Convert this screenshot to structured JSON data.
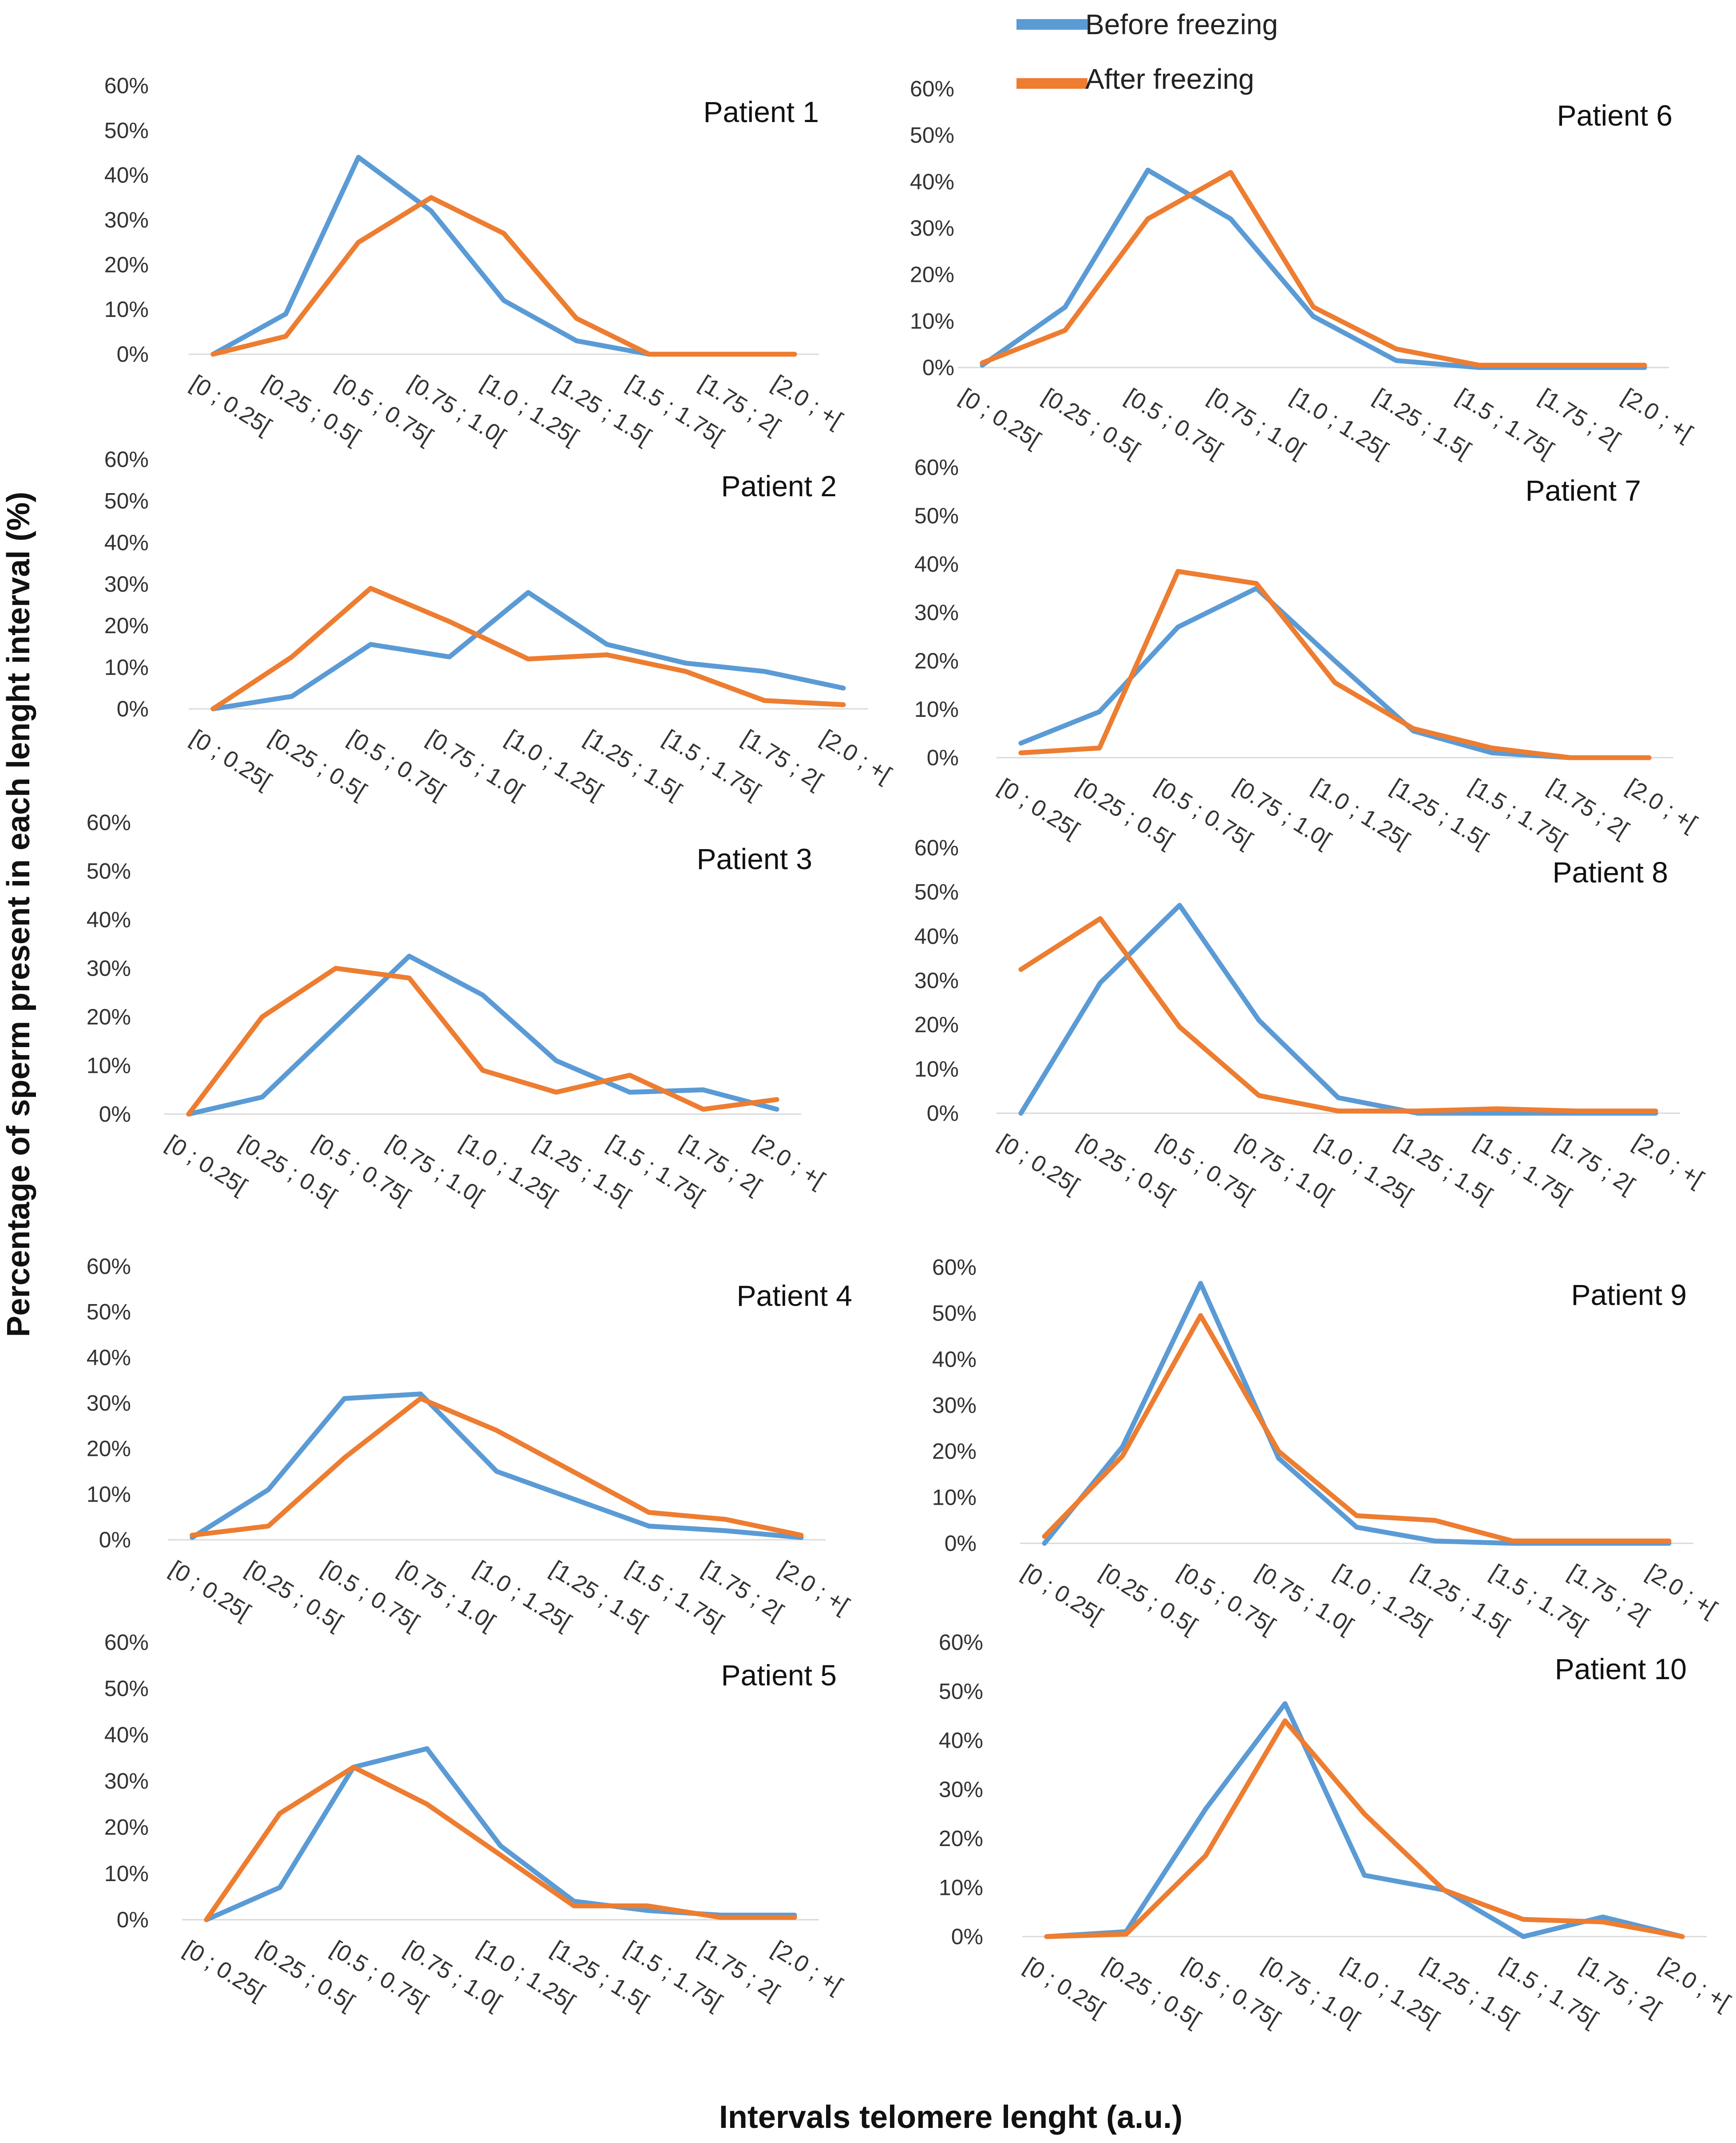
{
  "figure": {
    "ylabel": "Percentage of sperm present in each lenght interval (%)",
    "xlabel": "Intervals telomere lenght (a.u.)"
  },
  "legend": {
    "items": [
      {
        "name": "Before freezing",
        "color": "#5b9bd5"
      },
      {
        "name": "After freezing",
        "color": "#ed7d31"
      }
    ]
  },
  "chart_data": [
    {
      "type": "line",
      "title": "Patient 1",
      "categories": [
        "[0 ; 0.25[",
        "[0.25 ; 0.5[",
        "[0.5 ; 0.75[",
        "[0.75 ; 1.0[",
        "[1.0 ; 1.25[",
        "[1.25 ; 1.5[",
        "[1.5 ; 1.75[",
        "[1.75 ; 2[",
        "[2.0 ; +["
      ],
      "yticks": [
        "0%",
        "10%",
        "20%",
        "30%",
        "40%",
        "50%",
        "60%"
      ],
      "ylim": [
        0,
        60
      ],
      "series": [
        {
          "name": "Before freezing",
          "values": [
            0,
            9,
            44,
            32,
            12,
            3,
            0,
            0,
            0
          ]
        },
        {
          "name": "After freezing",
          "values": [
            0,
            4,
            25,
            35,
            27,
            8,
            0,
            0,
            0
          ]
        }
      ]
    },
    {
      "type": "line",
      "title": "Patient 2",
      "categories": [
        "[0 ; 0.25[",
        "[0.25 ; 0.5[",
        "[0.5 ; 0.75[",
        "[0.75 ; 1.0[",
        "[1.0 ; 1.25[",
        "[1.25 ; 1.5[",
        "[1.5 ; 1.75[",
        "[1.75 ; 2[",
        "[2.0 ; +["
      ],
      "yticks": [
        "0%",
        "10%",
        "20%",
        "30%",
        "40%",
        "50%",
        "60%"
      ],
      "ylim": [
        0,
        60
      ],
      "series": [
        {
          "name": "Before freezing",
          "values": [
            0,
            3,
            15.5,
            12.5,
            28,
            15.5,
            11,
            9,
            5
          ]
        },
        {
          "name": "After freezing",
          "values": [
            0,
            12.5,
            29,
            21,
            12,
            13,
            9,
            2,
            1
          ]
        }
      ]
    },
    {
      "type": "line",
      "title": "Patient 3",
      "categories": [
        "[0 ; 0.25[",
        "[0.25 ; 0.5[",
        "[0.5 ; 0.75[",
        "[0.75 ; 1.0[",
        "[1.0 ; 1.25[",
        "[1.25 ; 1.5[",
        "[1.5 ; 1.75[",
        "[1.75 ; 2[",
        "[2.0 ; +["
      ],
      "yticks": [
        "0%",
        "10%",
        "20%",
        "30%",
        "40%",
        "50%",
        "60%"
      ],
      "ylim": [
        0,
        60
      ],
      "series": [
        {
          "name": "Before freezing",
          "values": [
            0,
            3.5,
            18,
            32.5,
            24.5,
            11,
            4.5,
            5,
            1
          ]
        },
        {
          "name": "After freezing",
          "values": [
            0,
            20,
            30,
            28,
            9,
            4.5,
            8,
            1,
            3
          ]
        }
      ]
    },
    {
      "type": "line",
      "title": "Patient 4",
      "categories": [
        "[0 ; 0.25[",
        "[0.25 ; 0.5[",
        "[0.5 ; 0.75[",
        "[0.75 ; 1.0[",
        "[1.0 ; 1.25[",
        "[1.25 ; 1.5[",
        "[1.5 ; 1.75[",
        "[1.75 ; 2[",
        "[2.0 ; +["
      ],
      "yticks": [
        "0%",
        "10%",
        "20%",
        "30%",
        "40%",
        "50%",
        "60%"
      ],
      "ylim": [
        0,
        60
      ],
      "series": [
        {
          "name": "Before freezing",
          "values": [
            0.5,
            11,
            31,
            32,
            15,
            9,
            3,
            2,
            0.5
          ]
        },
        {
          "name": "After freezing",
          "values": [
            1,
            3,
            18,
            31,
            24,
            15,
            6,
            4.5,
            1
          ]
        }
      ]
    },
    {
      "type": "line",
      "title": "Patient 5",
      "categories": [
        "[0 ; 0.25[",
        "[0.25 ; 0.5[",
        "[0.5 ; 0.75[",
        "[0.75 ; 1.0[",
        "[1.0 ; 1.25[",
        "[1.25 ; 1.5[",
        "[1.5 ; 1.75[",
        "[1.75 ; 2[",
        "[2.0 ; +["
      ],
      "yticks": [
        "0%",
        "10%",
        "20%",
        "30%",
        "40%",
        "50%",
        "60%"
      ],
      "ylim": [
        0,
        60
      ],
      "series": [
        {
          "name": "Before freezing",
          "values": [
            0,
            7,
            33,
            37,
            16,
            4,
            2,
            1,
            1
          ]
        },
        {
          "name": "After freezing",
          "values": [
            0,
            23,
            33,
            25,
            14,
            3,
            3,
            0.5,
            0.5
          ]
        }
      ]
    },
    {
      "type": "line",
      "title": "Patient 6",
      "categories": [
        "[0 ; 0.25[",
        "[0.25 ; 0.5[",
        "[0.5 ; 0.75[",
        "[0.75 ; 1.0[",
        "[1.0 ; 1.25[",
        "[1.25 ; 1.5[",
        "[1.5 ; 1.75[",
        "[1.75 ; 2[",
        "[2.0 ; +["
      ],
      "yticks": [
        "0%",
        "10%",
        "20%",
        "30%",
        "40%",
        "50%",
        "60%"
      ],
      "ylim": [
        0,
        60
      ],
      "series": [
        {
          "name": "Before freezing",
          "values": [
            0.5,
            13,
            42.5,
            32,
            11,
            1.5,
            0,
            0,
            0
          ]
        },
        {
          "name": "After freezing",
          "values": [
            1,
            8,
            32,
            42,
            13,
            4,
            0.5,
            0.5,
            0.5
          ]
        }
      ]
    },
    {
      "type": "line",
      "title": "Patient 7",
      "categories": [
        "[0 ; 0.25[",
        "[0.25 ; 0.5[",
        "[0.5 ; 0.75[",
        "[0.75 ; 1.0[",
        "[1.0 ; 1.25[",
        "[1.25 ; 1.5[",
        "[1.5 ; 1.75[",
        "[1.75 ; 2[",
        "[2.0 ; +["
      ],
      "yticks": [
        "0%",
        "10%",
        "20%",
        "30%",
        "40%",
        "50%",
        "60%"
      ],
      "ylim": [
        0,
        60
      ],
      "series": [
        {
          "name": "Before freezing",
          "values": [
            3,
            9.5,
            27,
            35,
            20,
            5.5,
            1,
            0,
            0
          ]
        },
        {
          "name": "After freezing",
          "values": [
            1,
            2,
            38.5,
            36,
            15.5,
            6,
            2,
            0,
            0
          ]
        }
      ]
    },
    {
      "type": "line",
      "title": "Patient 8",
      "categories": [
        "[0 ; 0.25[",
        "[0.25 ; 0.5[",
        "[0.5 ; 0.75[",
        "[0.75 ; 1.0[",
        "[1.0 ; 1.25[",
        "[1.25 ; 1.5[",
        "[1.5 ; 1.75[",
        "[1.75 ; 2[",
        "[2.0 ; +["
      ],
      "yticks": [
        "0%",
        "10%",
        "20%",
        "30%",
        "40%",
        "50%",
        "60%"
      ],
      "ylim": [
        0,
        60
      ],
      "series": [
        {
          "name": "Before freezing",
          "values": [
            0,
            29.5,
            47,
            21,
            3.5,
            0,
            0,
            0,
            0
          ]
        },
        {
          "name": "After freezing",
          "values": [
            32.5,
            44,
            19.5,
            4,
            0.5,
            0.5,
            1,
            0.5,
            0.5
          ]
        }
      ]
    },
    {
      "type": "line",
      "title": "Patient 9",
      "categories": [
        "[0 ; 0.25[",
        "[0.25 ; 0.5[",
        "[0.5 ; 0.75[",
        "[0.75 ; 1.0[",
        "[1.0 ; 1.25[",
        "[1.25 ; 1.5[",
        "[1.5 ; 1.75[",
        "[1.75 ; 2[",
        "[2.0 ; +["
      ],
      "yticks": [
        "0%",
        "10%",
        "20%",
        "30%",
        "40%",
        "50%",
        "60%"
      ],
      "ylim": [
        0,
        60
      ],
      "series": [
        {
          "name": "Before freezing",
          "values": [
            0,
            21,
            56.5,
            18.5,
            3.5,
            0.5,
            0,
            0,
            0
          ]
        },
        {
          "name": "After freezing",
          "values": [
            1.5,
            19,
            49.5,
            20,
            6,
            5,
            0.5,
            0.5,
            0.5
          ]
        }
      ]
    },
    {
      "type": "line",
      "title": "Patient 10",
      "categories": [
        "[0 ; 0.25[",
        "[0.25 ; 0.5[",
        "[0.5 ; 0.75[",
        "[0.75 ; 1.0[",
        "[1.0 ; 1.25[",
        "[1.25 ; 1.5[",
        "[1.5 ; 1.75[",
        "[1.75 ; 2[",
        "[2.0 ; +["
      ],
      "yticks": [
        "0%",
        "10%",
        "20%",
        "30%",
        "40%",
        "50%",
        "60%"
      ],
      "ylim": [
        0,
        60
      ],
      "series": [
        {
          "name": "Before freezing",
          "values": [
            0,
            1,
            26,
            47.5,
            12.5,
            9.5,
            0,
            4,
            0
          ]
        },
        {
          "name": "After freezing",
          "values": [
            0,
            0.5,
            16.5,
            44,
            25,
            9.5,
            3.5,
            3,
            0
          ]
        }
      ]
    }
  ]
}
